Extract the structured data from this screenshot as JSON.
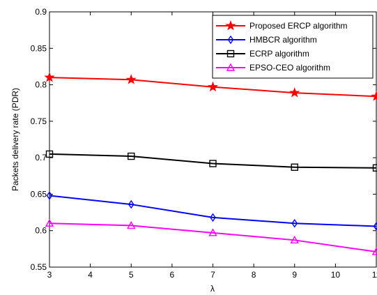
{
  "chart_data": {
    "type": "line",
    "title": "",
    "xlabel": "λ",
    "ylabel": "Packets delivery rate (PDR)",
    "xlim": [
      3,
      11
    ],
    "ylim": [
      0.55,
      0.9
    ],
    "x_ticks": [
      3,
      4,
      5,
      6,
      7,
      8,
      9,
      10,
      11
    ],
    "y_ticks": [
      0.55,
      0.6,
      0.65,
      0.7,
      0.75,
      0.8,
      0.85,
      0.9
    ],
    "x_tick_labels": [
      "3",
      "4",
      "5",
      "6",
      "7",
      "8",
      "9",
      "10",
      "11"
    ],
    "y_tick_labels": [
      "0.55",
      "0.6",
      "0.65",
      "0.7",
      "0.75",
      "0.8",
      "0.85",
      "0.9"
    ],
    "grid": false,
    "legend_position": "top-right",
    "x": [
      3,
      5,
      7,
      9,
      11
    ],
    "series": [
      {
        "name": "Proposed ERCP algorithm",
        "values": [
          0.81,
          0.807,
          0.797,
          0.789,
          0.784
        ],
        "color": "#ff0000",
        "marker": "star"
      },
      {
        "name": "HMBCR algorithm",
        "values": [
          0.648,
          0.636,
          0.618,
          0.61,
          0.606
        ],
        "color": "#0000ff",
        "marker": "diamond"
      },
      {
        "name": "ECRP algorithm",
        "values": [
          0.705,
          0.702,
          0.692,
          0.687,
          0.686
        ],
        "color": "#000000",
        "marker": "square"
      },
      {
        "name": "EPSO-CEO algorithm",
        "values": [
          0.61,
          0.607,
          0.597,
          0.587,
          0.571
        ],
        "color": "#ff00ff",
        "marker": "triangle"
      }
    ]
  }
}
